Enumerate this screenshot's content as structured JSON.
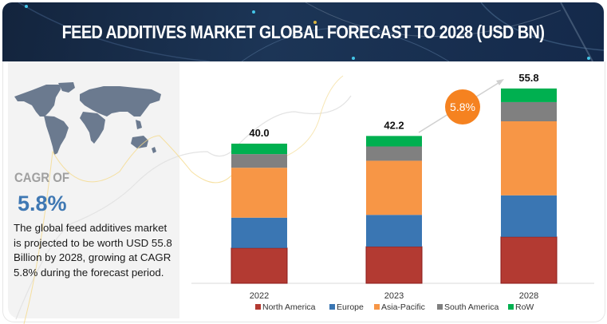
{
  "header": {
    "title": "FEED ADDITIVES MARKET GLOBAL FORECAST TO 2028 (USD BN)"
  },
  "summary": {
    "map_icon": "world-map-icon",
    "cagr_label": "CAGR OF",
    "cagr_value": "5.8%",
    "description": "The global feed additives market is projected to be worth USD 55.8 Billion by 2028, growing at CAGR 5.8% during the forecast period."
  },
  "chart_data": {
    "type": "bar",
    "stacked": true,
    "title": "FEED ADDITIVES MARKET GLOBAL FORECAST TO 2028 (USD BN)",
    "xlabel": "",
    "ylabel": "",
    "categories": [
      "2022",
      "2023",
      "2028"
    ],
    "totals": [
      40.0,
      42.2,
      55.8
    ],
    "total_labels": [
      "40.0",
      "42.2",
      "55.8"
    ],
    "series": [
      {
        "name": "North America",
        "color": "#b33a32",
        "values": [
          10.1,
          10.5,
          13.3
        ]
      },
      {
        "name": "Europe",
        "color": "#3a76b3",
        "values": [
          8.7,
          9.1,
          11.9
        ]
      },
      {
        "name": "Asia-Pacific",
        "color": "#f79646",
        "values": [
          14.3,
          15.5,
          21.2
        ]
      },
      {
        "name": "South America",
        "color": "#808080",
        "values": [
          3.9,
          4.1,
          5.5
        ]
      },
      {
        "name": "RoW",
        "color": "#00b050",
        "values": [
          3.0,
          3.0,
          3.9
        ]
      }
    ],
    "ylim": [
      0,
      60
    ],
    "grid": false,
    "legend": "bottom",
    "annotation": {
      "text": "5.8%",
      "color": "#f58220",
      "meaning": "CAGR arrow from 2023 to 2028"
    }
  }
}
